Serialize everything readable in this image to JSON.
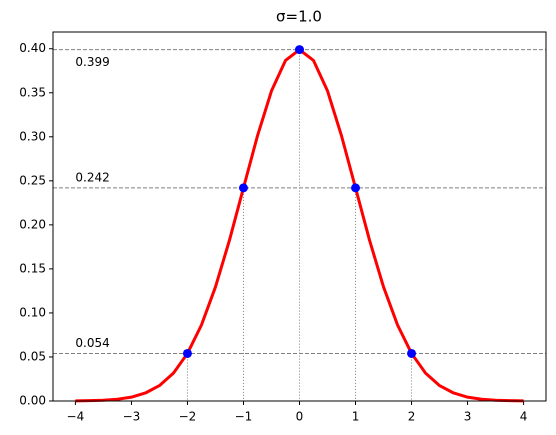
{
  "chart_data": {
    "type": "line",
    "title": "σ=1.0",
    "curve": {
      "color": "#ff0000",
      "x": [
        -4,
        -3.75,
        -3.5,
        -3.25,
        -3,
        -2.75,
        -2.5,
        -2.25,
        -2,
        -1.75,
        -1.5,
        -1.25,
        -1,
        -0.75,
        -0.5,
        -0.25,
        0,
        0.25,
        0.5,
        0.75,
        1,
        1.25,
        1.5,
        1.75,
        2,
        2.25,
        2.5,
        2.75,
        3,
        3.25,
        3.5,
        3.75,
        4
      ],
      "values": [
        0.0001,
        0.0004,
        0.0009,
        0.002,
        0.0044,
        0.0091,
        0.0175,
        0.0317,
        0.054,
        0.0863,
        0.1295,
        0.1826,
        0.242,
        0.3011,
        0.3521,
        0.3867,
        0.3989,
        0.3867,
        0.3521,
        0.3011,
        0.242,
        0.1826,
        0.1295,
        0.0863,
        0.054,
        0.0317,
        0.0175,
        0.0091,
        0.0044,
        0.002,
        0.0009,
        0.0004,
        0.0001
      ]
    },
    "points": {
      "color": "#0000ff",
      "x": [
        -2,
        -1,
        0,
        1,
        2
      ],
      "values": [
        0.054,
        0.242,
        0.399,
        0.242,
        0.054
      ]
    },
    "hlines": [
      {
        "value": 0.399,
        "label": "0.399"
      },
      {
        "value": 0.242,
        "label": "0.242"
      },
      {
        "value": 0.054,
        "label": "0.054"
      }
    ],
    "xlim": [
      -4.4,
      4.4
    ],
    "ylim": [
      0,
      0.419
    ],
    "xticks": [
      {
        "value": -4,
        "label": "−4"
      },
      {
        "value": -3,
        "label": "−3"
      },
      {
        "value": -2,
        "label": "−2"
      },
      {
        "value": -1,
        "label": "−1"
      },
      0,
      1,
      2,
      3,
      4
    ],
    "yticks": [
      {
        "value": 0,
        "label": "0.00"
      },
      {
        "value": 0.05,
        "label": "0.05"
      },
      {
        "value": 0.1,
        "label": "0.10"
      },
      {
        "value": 0.15,
        "label": "0.15"
      },
      {
        "value": 0.2,
        "label": "0.20"
      },
      {
        "value": 0.25,
        "label": "0.25"
      },
      {
        "value": 0.3,
        "label": "0.30"
      },
      {
        "value": 0.35,
        "label": "0.35"
      },
      {
        "value": 0.4,
        "label": "0.40"
      }
    ]
  }
}
